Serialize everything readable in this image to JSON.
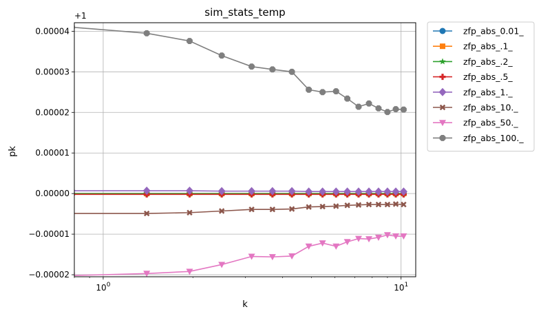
{
  "chart_data": {
    "type": "line",
    "title": "sim_stats_temp",
    "xlabel": "k",
    "ylabel": "pk",
    "offset_text": "+1",
    "x_scale": "log",
    "xlim": [
      0.8,
      11.2
    ],
    "ylim": [
      -2.05e-05,
      4.21e-05
    ],
    "x_ticks": [
      {
        "value": 1,
        "label": "10",
        "exp": "0"
      },
      {
        "value": 10,
        "label": "10",
        "exp": "1"
      }
    ],
    "y_ticks": [
      {
        "value": -2e-05,
        "label": "−0.00002"
      },
      {
        "value": -1e-05,
        "label": "−0.00001"
      },
      {
        "value": 0,
        "label": "0.00000"
      },
      {
        "value": 1e-05,
        "label": "0.00001"
      },
      {
        "value": 2e-05,
        "label": "0.00002"
      },
      {
        "value": 3e-05,
        "label": "0.00003"
      },
      {
        "value": 4e-05,
        "label": "0.00004"
      }
    ],
    "grid": true,
    "legend_position": "outside right, top",
    "x": [
      0.785,
      1.4,
      1.95,
      2.5,
      3.15,
      3.7,
      4.3,
      4.9,
      5.45,
      6.05,
      6.6,
      7.2,
      7.8,
      8.4,
      9.0,
      9.6,
      10.2
    ],
    "series": [
      {
        "name": "zfp_abs_0.01_",
        "color": "#1f77b4",
        "marker": "circle",
        "values": [
          0,
          0,
          0,
          0,
          0,
          0,
          0,
          0,
          0,
          0,
          0,
          0,
          0,
          0,
          0,
          0,
          0
        ]
      },
      {
        "name": "zfp_abs_.1_",
        "color": "#ff7f0e",
        "marker": "square",
        "values": [
          0,
          0,
          0,
          0,
          0,
          0,
          0,
          0,
          0,
          0,
          0,
          0,
          0,
          0,
          0,
          0,
          0
        ]
      },
      {
        "name": "zfp_abs_.2_",
        "color": "#2ca02c",
        "marker": "star",
        "values": [
          0,
          0,
          0,
          0,
          0,
          0,
          0,
          0,
          0,
          0,
          0,
          0,
          0,
          0,
          0,
          0,
          0
        ]
      },
      {
        "name": "zfp_abs_.5_",
        "color": "#d62728",
        "marker": "plus",
        "values": [
          -2e-07,
          -2e-07,
          -2e-07,
          -2e-07,
          -2e-07,
          -2e-07,
          -2e-07,
          -2e-07,
          -2e-07,
          -2e-07,
          -2e-07,
          -2e-07,
          -2e-07,
          -2e-07,
          -2e-07,
          -2e-07,
          -2e-07
        ]
      },
      {
        "name": "zfp_abs_1._",
        "color": "#9467bd",
        "marker": "diamond",
        "values": [
          7e-07,
          7e-07,
          7e-07,
          6e-07,
          6e-07,
          6e-07,
          6e-07,
          5e-07,
          5e-07,
          5e-07,
          5e-07,
          5e-07,
          5e-07,
          5e-07,
          5e-07,
          5e-07,
          5e-07
        ]
      },
      {
        "name": "zfp_abs_10._",
        "color": "#8c564b",
        "marker": "x",
        "values": [
          -4.9e-06,
          -4.9e-06,
          -4.7e-06,
          -4.3e-06,
          -3.9e-06,
          -3.9e-06,
          -3.8e-06,
          -3.3e-06,
          -3.2e-06,
          -3.1e-06,
          -2.9e-06,
          -2.8e-06,
          -2.7e-06,
          -2.7e-06,
          -2.7e-06,
          -2.6e-06,
          -2.7e-06
        ]
      },
      {
        "name": "zfp_abs_50._",
        "color": "#e377c2",
        "marker": "triangle-down",
        "values": [
          -2.02e-05,
          -1.97e-05,
          -1.92e-05,
          -1.75e-05,
          -1.55e-05,
          -1.56e-05,
          -1.54e-05,
          -1.3e-05,
          -1.22e-05,
          -1.3e-05,
          -1.19e-05,
          -1.11e-05,
          -1.12e-05,
          -1.08e-05,
          -1.02e-05,
          -1.05e-05,
          -1.05e-05
        ]
      },
      {
        "name": "zfp_abs_100._",
        "color": "#7f7f7f",
        "marker": "octagon",
        "values": [
          4.1e-05,
          3.95e-05,
          3.76e-05,
          3.4e-05,
          3.13e-05,
          3.06e-05,
          3e-05,
          2.56e-05,
          2.5e-05,
          2.52e-05,
          2.34e-05,
          2.14e-05,
          2.22e-05,
          2.1e-05,
          2.01e-05,
          2.08e-05,
          2.07e-05
        ]
      }
    ]
  }
}
